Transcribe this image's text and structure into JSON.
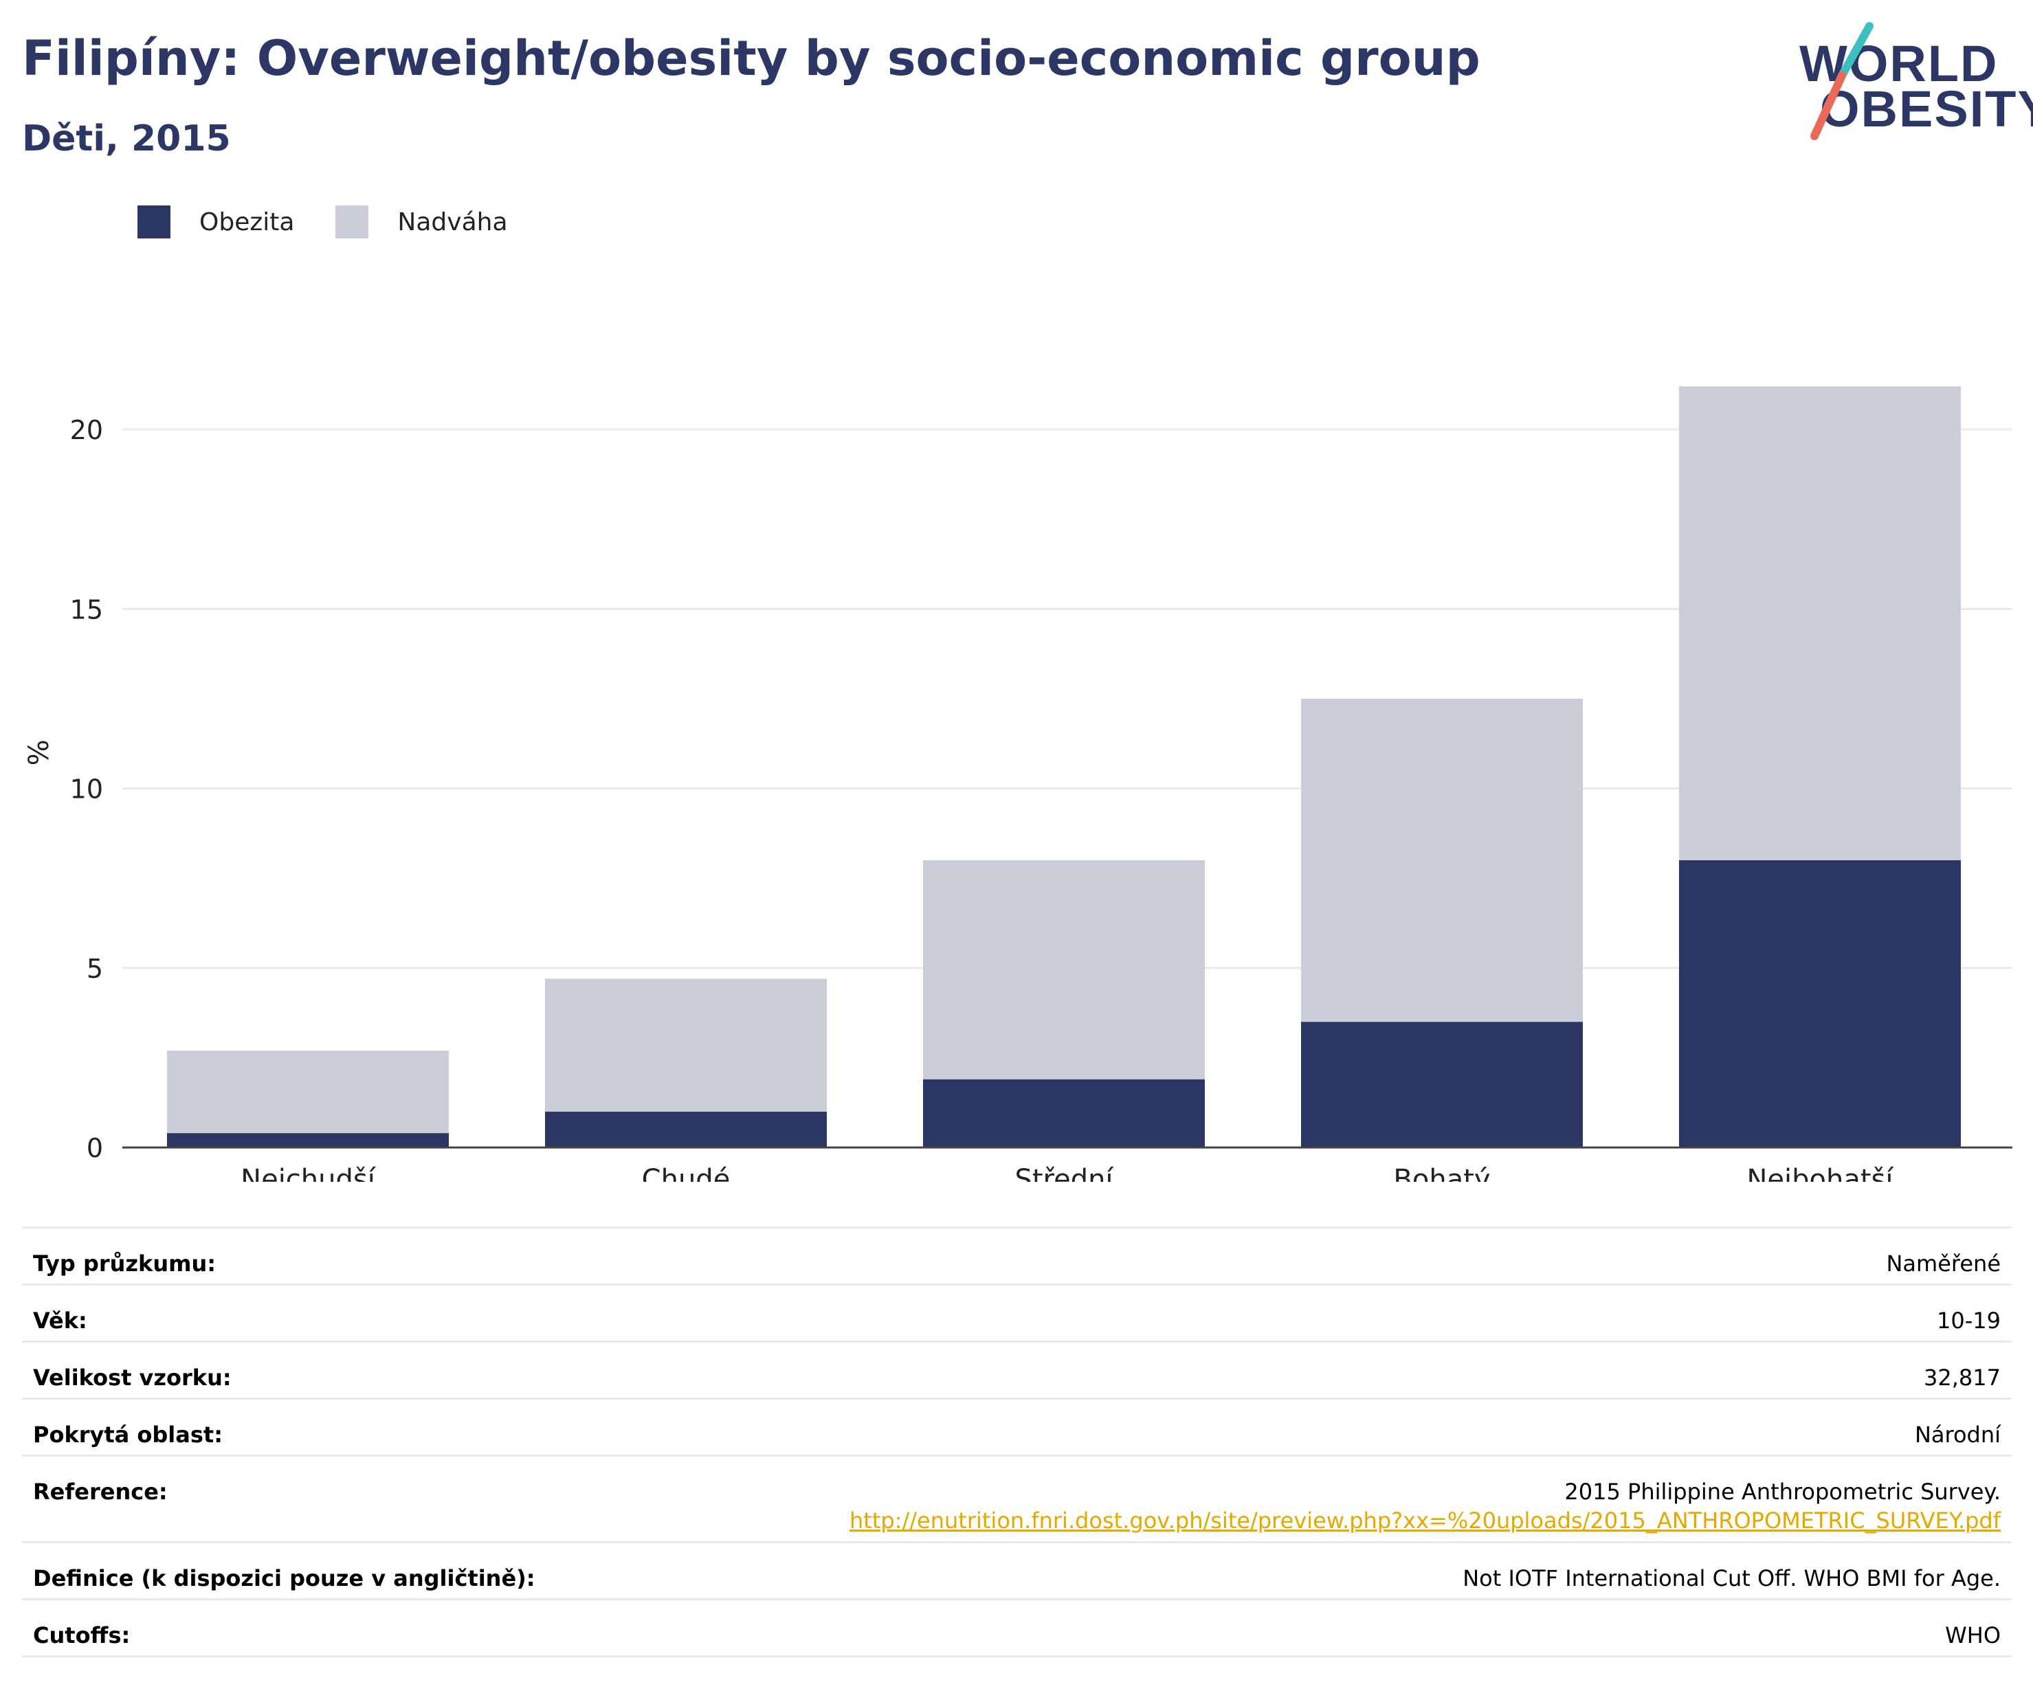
{
  "header": {
    "title": "Filipíny: Overweight/obesity by socio-economic group",
    "subtitle": "Děti, 2015"
  },
  "logo": {
    "line1": "WORLD",
    "line2": "OBESITY",
    "accent_teal": "#3bbfc1",
    "accent_coral": "#ea6a5a"
  },
  "colors": {
    "obesity": "#2b3665",
    "overweight": "#cbcdd9",
    "axis": "#444444",
    "grid": "#e8eaf3",
    "link": "#e5a800"
  },
  "chart_data": {
    "type": "bar",
    "stacked": true,
    "ylabel": "%",
    "ylim": [
      0,
      22
    ],
    "yticks": [
      0,
      5,
      10,
      15,
      20
    ],
    "grid": true,
    "legend_position": "top-left",
    "categories": [
      "Nejchudší",
      "Chudé",
      "Střední",
      "Bohatý",
      "Nejbohatší"
    ],
    "series": [
      {
        "name": "Obezita",
        "values": [
          0.4,
          1.0,
          1.9,
          3.5,
          8.0
        ]
      },
      {
        "name": "Nadváha",
        "values": [
          2.3,
          3.7,
          6.1,
          9.0,
          13.2
        ]
      }
    ]
  },
  "info": [
    {
      "key": "Typ průzkumu:",
      "value": "Naměřené"
    },
    {
      "key": "Věk:",
      "value": "10-19"
    },
    {
      "key": "Velikost vzorku:",
      "value": "32,817"
    },
    {
      "key": "Pokrytá oblast:",
      "value": "Národní"
    },
    {
      "key": "Reference:",
      "value": "2015 Philippine Anthropometric Survey.",
      "link": "http://enutrition.fnri.dost.gov.ph/site/preview.php?xx=%20uploads/2015_ANTHROPOMETRIC_SURVEY.pdf"
    },
    {
      "key": "Definice (k dispozici pouze v angličtině):",
      "value": "Not IOTF International Cut Off. WHO BMI for Age."
    },
    {
      "key": "Cutoffs:",
      "value": "WHO"
    }
  ]
}
